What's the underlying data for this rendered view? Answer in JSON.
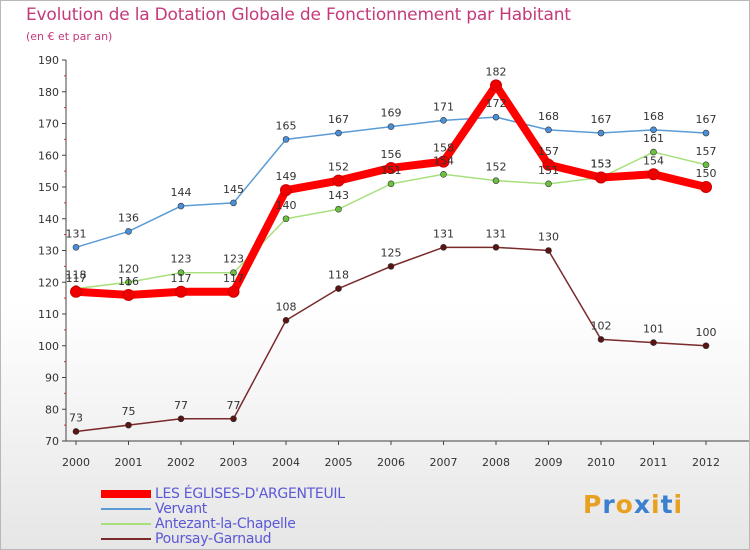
{
  "title": "Evolution de la Dotation Globale de Fonctionnement par Habitant",
  "subtitle": "(en € et par an)",
  "logo": {
    "text": "Proxiti",
    "letters": [
      "P",
      "r",
      "o",
      "x",
      "i",
      "t",
      "i"
    ],
    "colors": [
      "#e8a020",
      "#3a7fd0",
      "#e8a020",
      "#3a7fd0",
      "#e8a020",
      "#3a7fd0",
      "#e8a020"
    ]
  },
  "chart_data": {
    "type": "line",
    "title": "Evolution de la Dotation Globale de Fonctionnement par Habitant",
    "subtitle": "(en € et par an)",
    "xlabel": "",
    "ylabel": "",
    "categories": [
      "2000",
      "2001",
      "2002",
      "2003",
      "2004",
      "2005",
      "2006",
      "2007",
      "2008",
      "2009",
      "2010",
      "2011",
      "2012"
    ],
    "ylim": [
      70,
      190
    ],
    "yticks": [
      70,
      80,
      90,
      100,
      110,
      120,
      130,
      140,
      150,
      160,
      170,
      180,
      190
    ],
    "grid": false,
    "legend_position": "bottom-left",
    "series": [
      {
        "name": "Vervant",
        "color": "#5b9bd5",
        "marker_color": "#4a90d9",
        "values": [
          131,
          136,
          144,
          145,
          165,
          167,
          169,
          171,
          172,
          168,
          167,
          168,
          167
        ],
        "labels": [
          "131",
          "136",
          "144",
          "145",
          "165",
          "167",
          "169",
          "171",
          "172",
          "168",
          "167",
          "168",
          "167"
        ]
      },
      {
        "name": "Antezant-la-Chapelle",
        "color": "#a8e07e",
        "marker_color": "#6cc040",
        "values": [
          118,
          120,
          123,
          123,
          140,
          143,
          151,
          154,
          152,
          151,
          153,
          161,
          157
        ],
        "labels": [
          "118",
          "120",
          "123",
          "123",
          "140",
          "143",
          "151",
          "154",
          "152",
          "151",
          "153",
          "161",
          "157"
        ]
      },
      {
        "name": "Poursay-Garnaud",
        "color": "#7a2a2a",
        "marker_color": "#5a1414",
        "values": [
          73,
          75,
          77,
          77,
          108,
          118,
          125,
          131,
          131,
          130,
          102,
          101,
          100
        ],
        "labels": [
          "73",
          "75",
          "77",
          "77",
          "108",
          "118",
          "125",
          "131",
          "131",
          "130",
          "102",
          "101",
          "100"
        ]
      },
      {
        "name": "LES ÉGLISES-D'ARGENTEUIL",
        "color": "#ff0000",
        "marker_color": "#ee0000",
        "values": [
          117,
          116,
          117,
          117,
          149,
          152,
          156,
          158,
          182,
          157,
          153,
          154,
          150
        ],
        "labels": [
          "117",
          "116",
          "117",
          "117",
          "149",
          "152",
          "156",
          "158",
          "182",
          "157",
          "153",
          "154",
          "150"
        ]
      }
    ],
    "legend": [
      "LES ÉGLISES-D'ARGENTEUIL",
      "Vervant",
      "Antezant-la-Chapelle",
      "Poursay-Garnaud"
    ]
  }
}
